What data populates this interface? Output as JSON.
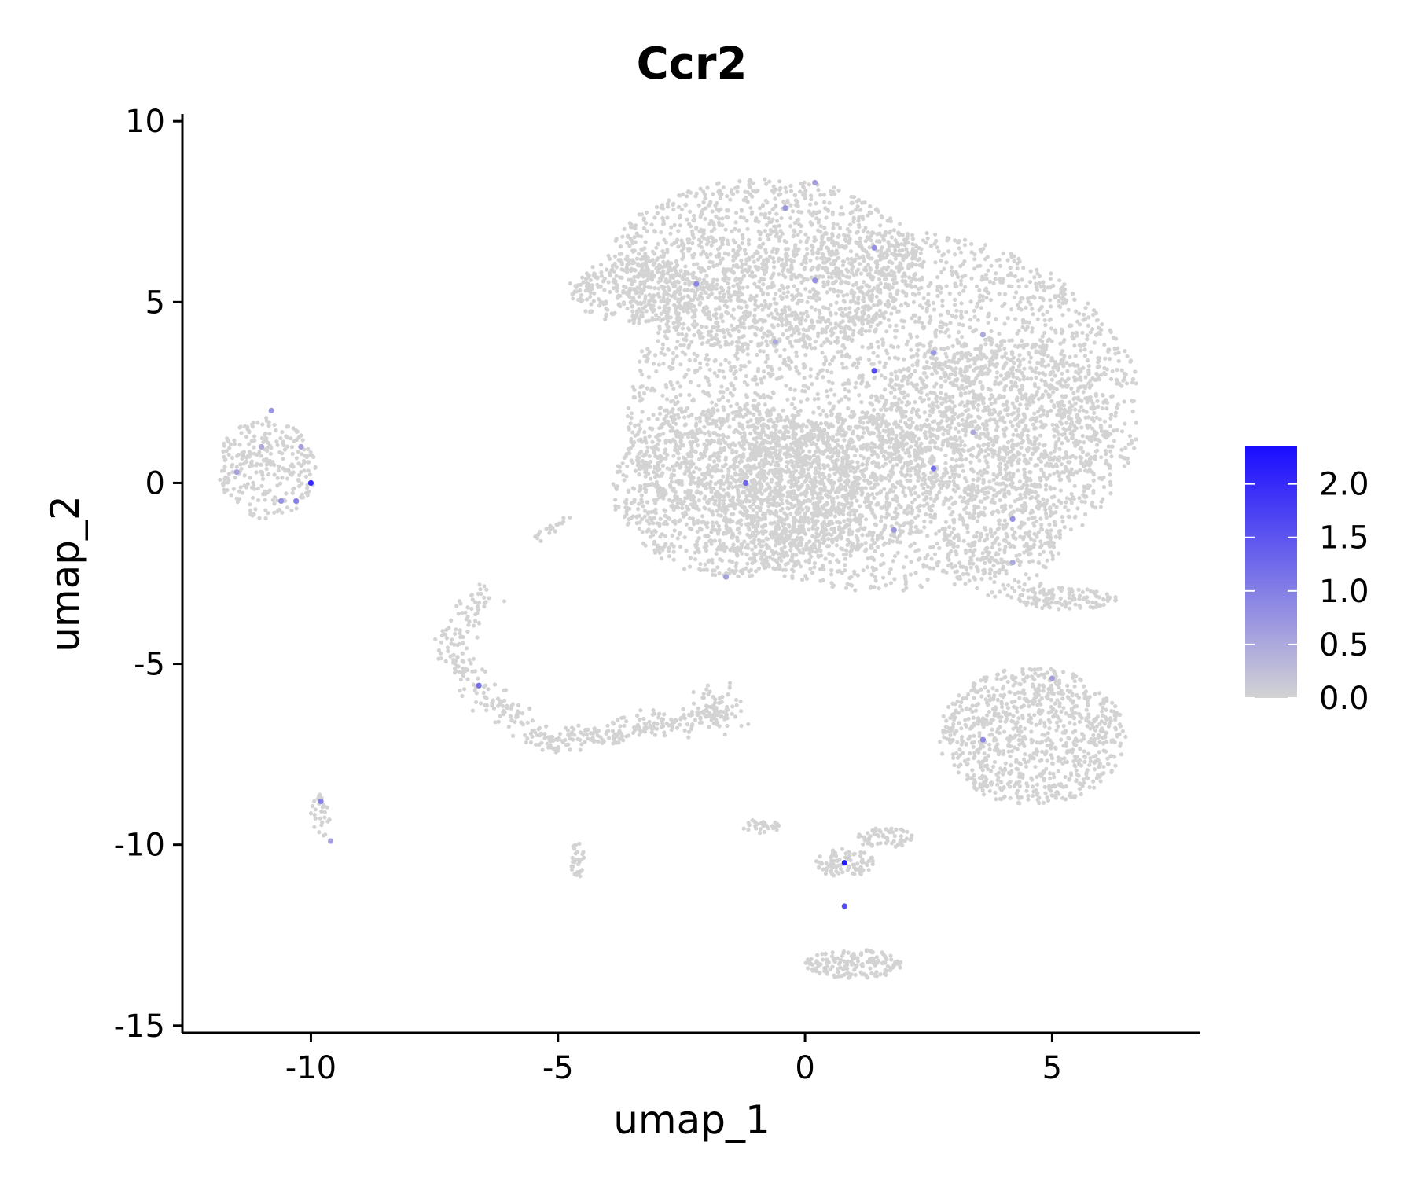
{
  "chart_data": {
    "type": "scatter",
    "title": "Ccr2",
    "xlabel": "umap_1",
    "ylabel": "umap_2",
    "xlim": [
      -12.6,
      8.0
    ],
    "ylim": [
      -15.2,
      10.2
    ],
    "x_ticks": [
      -10,
      -5,
      0,
      5
    ],
    "x_tick_labels": [
      "-10",
      "-5",
      "0",
      "5"
    ],
    "y_ticks": [
      10,
      5,
      0,
      -5,
      -10,
      -15
    ],
    "y_tick_labels": [
      "10",
      "5",
      "0",
      "-5",
      "-10",
      "-15"
    ],
    "grid": false,
    "legend": {
      "placement": "right",
      "type": "colorbar",
      "range": [
        0,
        2.35
      ],
      "ticks": [
        2.0,
        1.5,
        1.0,
        0.5,
        0.0
      ],
      "tick_labels": [
        "2.0",
        "1.5",
        "1.0",
        "0.5",
        "0.0"
      ],
      "low_color": "#d3d3d3",
      "high_color": "#1a0dff"
    },
    "point_color": "#d3d3d3",
    "clusters": [
      {
        "cx": 1.6,
        "cy": 2.0,
        "rx": 5.2,
        "ry": 5.0,
        "n": 3400,
        "shape": "ellipse"
      },
      {
        "cx": -0.8,
        "cy": 6.0,
        "rx": 3.2,
        "ry": 2.4,
        "n": 1400,
        "shape": "ellipse"
      },
      {
        "cx": -3.4,
        "cy": 5.3,
        "rx": 1.4,
        "ry": 0.9,
        "n": 300,
        "shape": "ellipse"
      },
      {
        "cx": 3.8,
        "cy": 1.8,
        "rx": 2.4,
        "ry": 2.2,
        "n": 900,
        "shape": "ellipse"
      },
      {
        "cx": -1.4,
        "cy": -0.2,
        "rx": 2.5,
        "ry": 2.4,
        "n": 1300,
        "shape": "ellipse"
      },
      {
        "cx": 0.6,
        "cy": 0.0,
        "rx": 2.2,
        "ry": 2.0,
        "n": 800,
        "shape": "ellipse"
      },
      {
        "cx": 4.0,
        "cy": -1.6,
        "rx": 1.2,
        "ry": 1.6,
        "n": 250,
        "shape": "ellipse"
      },
      {
        "cx": 4.6,
        "cy": -7.0,
        "rx": 1.9,
        "ry": 1.9,
        "n": 900,
        "shape": "ellipse"
      },
      {
        "cx": 5.3,
        "cy": -3.2,
        "rx": 1.0,
        "ry": 0.3,
        "n": 120,
        "shape": "ellipse"
      },
      {
        "cx": -10.9,
        "cy": 0.4,
        "rx": 1.0,
        "ry": 1.4,
        "n": 280,
        "shape": "ellipse"
      },
      {
        "cx": -9.8,
        "cy": -9.2,
        "rx": 0.2,
        "ry": 0.6,
        "n": 30,
        "shape": "ellipse"
      },
      {
        "cx": -4.6,
        "cy": -10.4,
        "rx": 0.15,
        "ry": 0.5,
        "n": 30,
        "shape": "ellipse"
      },
      {
        "cx": 1.0,
        "cy": -13.3,
        "rx": 1.0,
        "ry": 0.4,
        "n": 160,
        "shape": "ellipse"
      },
      {
        "cx": 0.8,
        "cy": -10.5,
        "rx": 0.6,
        "ry": 0.4,
        "n": 90,
        "shape": "ellipse"
      },
      {
        "cx": 1.6,
        "cy": -9.8,
        "rx": 0.6,
        "ry": 0.3,
        "n": 60,
        "shape": "ellipse"
      },
      {
        "cx": -0.9,
        "cy": -9.5,
        "rx": 0.4,
        "ry": 0.2,
        "n": 30,
        "shape": "ellipse"
      }
    ],
    "arcs": [
      {
        "points": [
          [
            -6.5,
            -3.0
          ],
          [
            -7.2,
            -4.6
          ],
          [
            -6.4,
            -6.0
          ],
          [
            -5.3,
            -7.1
          ],
          [
            -4.0,
            -7.0
          ],
          [
            -2.8,
            -6.6
          ],
          [
            -1.6,
            -6.4
          ]
        ],
        "n": 420,
        "spread": 0.18
      },
      {
        "points": [
          [
            -5.6,
            -1.6
          ],
          [
            -4.8,
            -1.0
          ]
        ],
        "n": 20,
        "spread": 0.08
      },
      {
        "points": [
          [
            -1.9,
            -5.8
          ],
          [
            -1.5,
            -6.5
          ]
        ],
        "n": 60,
        "spread": 0.2
      }
    ],
    "highlighted_points": [
      {
        "x": 0.8,
        "y": -10.5,
        "v": 2.2
      },
      {
        "x": -10.0,
        "y": 0.0,
        "v": 2.0
      },
      {
        "x": 1.4,
        "y": 3.1,
        "v": 1.6
      },
      {
        "x": -1.2,
        "y": 0.0,
        "v": 1.3
      },
      {
        "x": 2.6,
        "y": 0.4,
        "v": 1.2
      },
      {
        "x": 0.8,
        "y": -11.7,
        "v": 1.6
      },
      {
        "x": -6.6,
        "y": -5.6,
        "v": 1.2
      },
      {
        "x": -10.3,
        "y": -0.5,
        "v": 1.0
      },
      {
        "x": -9.8,
        "y": -8.8,
        "v": 1.0
      },
      {
        "x": -2.2,
        "y": 5.5,
        "v": 0.9
      },
      {
        "x": 0.2,
        "y": 5.6,
        "v": 0.8
      },
      {
        "x": -0.4,
        "y": 7.6,
        "v": 0.7
      },
      {
        "x": 1.4,
        "y": 6.5,
        "v": 0.8
      },
      {
        "x": 3.6,
        "y": -7.1,
        "v": 0.9
      },
      {
        "x": 4.2,
        "y": -1.0,
        "v": 0.8
      },
      {
        "x": -10.8,
        "y": 2.0,
        "v": 0.7
      },
      {
        "x": -11.5,
        "y": 0.3,
        "v": 0.6
      },
      {
        "x": -10.6,
        "y": -0.5,
        "v": 0.8
      },
      {
        "x": 2.6,
        "y": 3.6,
        "v": 0.7
      },
      {
        "x": 0.2,
        "y": 8.3,
        "v": 0.6
      },
      {
        "x": -9.6,
        "y": -9.9,
        "v": 0.6
      },
      {
        "x": 5.0,
        "y": -5.4,
        "v": 0.6
      },
      {
        "x": 1.8,
        "y": -1.3,
        "v": 0.7
      },
      {
        "x": -1.6,
        "y": -2.6,
        "v": 0.6
      },
      {
        "x": 3.6,
        "y": 4.1,
        "v": 0.5
      },
      {
        "x": -11.0,
        "y": 1.0,
        "v": 0.5
      },
      {
        "x": -10.2,
        "y": 1.0,
        "v": 0.6
      },
      {
        "x": 4.2,
        "y": -2.2,
        "v": 0.5
      },
      {
        "x": 3.4,
        "y": 1.4,
        "v": 0.5
      },
      {
        "x": -0.6,
        "y": 3.9,
        "v": 0.5
      }
    ]
  }
}
